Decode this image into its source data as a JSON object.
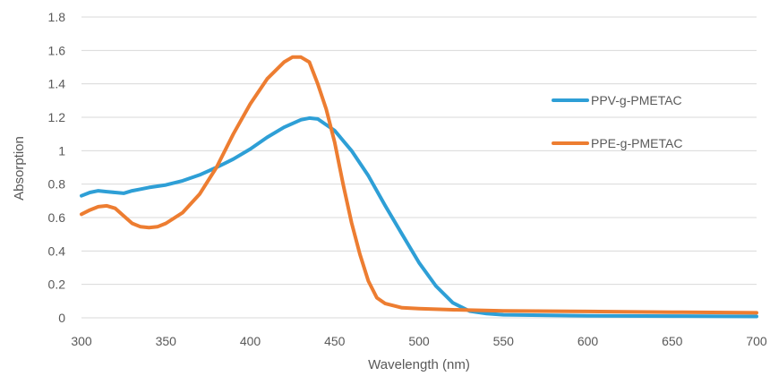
{
  "chart_data": {
    "type": "line",
    "title": "",
    "xlabel": "Wavelength (nm)",
    "ylabel": "Absorption",
    "xlim": [
      300,
      700
    ],
    "ylim": [
      0,
      1.8
    ],
    "x_ticks": [
      "300",
      "350",
      "400",
      "450",
      "500",
      "550",
      "600",
      "650",
      "700"
    ],
    "y_ticks": [
      "0",
      "0.2",
      "0.4",
      "0.6",
      "0.8",
      "1",
      "1.2",
      "1.4",
      "1.6",
      "1.8"
    ],
    "grid": true,
    "legend_position": "right",
    "series": [
      {
        "name": "PPV-g-PMETAC",
        "color": "#2e9fd6",
        "points": [
          [
            300,
            0.73
          ],
          [
            305,
            0.75
          ],
          [
            310,
            0.76
          ],
          [
            315,
            0.755
          ],
          [
            320,
            0.75
          ],
          [
            325,
            0.745
          ],
          [
            330,
            0.76
          ],
          [
            335,
            0.77
          ],
          [
            340,
            0.78
          ],
          [
            350,
            0.795
          ],
          [
            360,
            0.82
          ],
          [
            370,
            0.855
          ],
          [
            380,
            0.9
          ],
          [
            390,
            0.95
          ],
          [
            400,
            1.01
          ],
          [
            410,
            1.08
          ],
          [
            420,
            1.14
          ],
          [
            430,
            1.185
          ],
          [
            435,
            1.195
          ],
          [
            440,
            1.19
          ],
          [
            450,
            1.12
          ],
          [
            460,
            1.0
          ],
          [
            470,
            0.85
          ],
          [
            480,
            0.67
          ],
          [
            490,
            0.5
          ],
          [
            500,
            0.33
          ],
          [
            510,
            0.19
          ],
          [
            520,
            0.09
          ],
          [
            530,
            0.04
          ],
          [
            540,
            0.025
          ],
          [
            550,
            0.018
          ],
          [
            600,
            0.012
          ],
          [
            650,
            0.01
          ],
          [
            700,
            0.008
          ]
        ]
      },
      {
        "name": "PPE-g-PMETAC",
        "color": "#ed7d31",
        "points": [
          [
            300,
            0.62
          ],
          [
            305,
            0.645
          ],
          [
            310,
            0.665
          ],
          [
            315,
            0.67
          ],
          [
            320,
            0.655
          ],
          [
            325,
            0.61
          ],
          [
            330,
            0.565
          ],
          [
            335,
            0.545
          ],
          [
            340,
            0.54
          ],
          [
            345,
            0.545
          ],
          [
            350,
            0.565
          ],
          [
            360,
            0.63
          ],
          [
            370,
            0.74
          ],
          [
            380,
            0.9
          ],
          [
            390,
            1.1
          ],
          [
            400,
            1.28
          ],
          [
            410,
            1.43
          ],
          [
            420,
            1.53
          ],
          [
            425,
            1.56
          ],
          [
            430,
            1.56
          ],
          [
            435,
            1.53
          ],
          [
            440,
            1.4
          ],
          [
            445,
            1.25
          ],
          [
            450,
            1.05
          ],
          [
            455,
            0.8
          ],
          [
            460,
            0.57
          ],
          [
            465,
            0.38
          ],
          [
            470,
            0.22
          ],
          [
            475,
            0.12
          ],
          [
            480,
            0.085
          ],
          [
            490,
            0.06
          ],
          [
            500,
            0.055
          ],
          [
            520,
            0.048
          ],
          [
            550,
            0.042
          ],
          [
            600,
            0.038
          ],
          [
            650,
            0.034
          ],
          [
            700,
            0.03
          ]
        ]
      }
    ]
  }
}
